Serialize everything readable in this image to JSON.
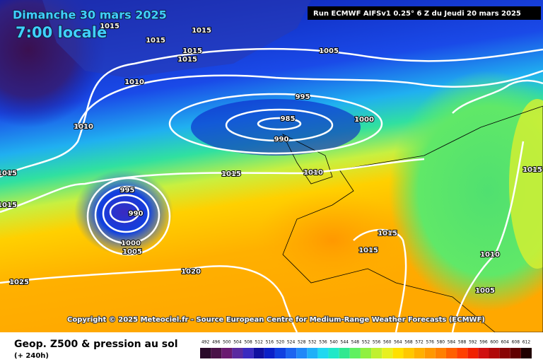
{
  "header": {
    "date": "Dimanche 30 mars 2025",
    "time": "7:00 locale",
    "run": "Run ECMWF AIFSv1 0.25° 6 Z du Jeudi 20 mars 2025"
  },
  "copyright": "Copyright © 2025 Meteociel.fr - Source European Centre for Medium-Range Weather Forecasts (ECMWF)",
  "footer": {
    "title": "Geop. Z500 & pression au sol",
    "lead": "(+ 240h)"
  },
  "isobar_labels": [
    1015,
    1015,
    1015,
    1015,
    1015,
    1005,
    1010,
    995,
    985,
    990,
    1000,
    1010,
    1015,
    1015,
    1010,
    1015,
    995,
    1015,
    990,
    1000,
    1005,
    1015,
    1015,
    1010,
    1020,
    1025,
    1005
  ],
  "legend": {
    "values": [
      492,
      496,
      500,
      504,
      508,
      512,
      516,
      520,
      524,
      528,
      532,
      536,
      540,
      544,
      548,
      552,
      556,
      560,
      564,
      568,
      572,
      576,
      580,
      584,
      588,
      592,
      596,
      600,
      604,
      608,
      612
    ],
    "colors": [
      "#2a0a2a",
      "#4a1248",
      "#6a1a70",
      "#5a2aa0",
      "#3a2ac0",
      "#1010a0",
      "#0a20c8",
      "#1040e0",
      "#1c64f0",
      "#2088f8",
      "#20b0f8",
      "#20d8f0",
      "#20e8c8",
      "#30e890",
      "#60f060",
      "#90f040",
      "#c0f030",
      "#e8f020",
      "#ffe000",
      "#ffc800",
      "#ffb000",
      "#ff9800",
      "#ff8000",
      "#ff6000",
      "#ff4000",
      "#f02000",
      "#d01010",
      "#b00808",
      "#880404",
      "#600000",
      "#200000"
    ]
  }
}
